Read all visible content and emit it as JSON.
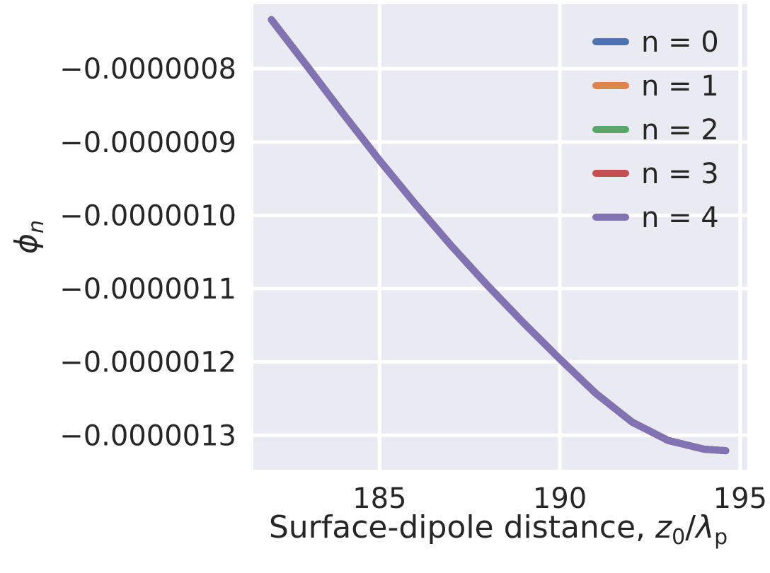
{
  "chart_data": {
    "type": "line",
    "title": "",
    "xlabel": "Surface-dipole distance, ",
    "xlabel_math": {
      "var": "z",
      "var_sub": "0",
      "slash": "/",
      "var2": "λ",
      "var2_sub": "p"
    },
    "ylabel": {
      "var": "ϕ",
      "sub": "n"
    },
    "xlim": [
      181.5,
      195.2
    ],
    "ylim": [
      -1.347e-06,
      -7.12e-07
    ],
    "x_ticks": [
      185,
      190,
      195
    ],
    "x_tick_labels": [
      "185",
      "190",
      "195"
    ],
    "y_ticks": [
      -8e-07,
      -9e-07,
      -1e-06,
      -1.1e-06,
      -1.2e-06,
      -1.3e-06
    ],
    "y_tick_labels": [
      "−0.0000008",
      "−0.0000009",
      "−0.0000010",
      "−0.0000011",
      "−0.0000012",
      "−0.0000013"
    ],
    "grid": true,
    "legend_position": "top-right",
    "series": [
      {
        "name": "n = 0",
        "color": "#4c72b0",
        "x": [
          182.0,
          183.0,
          184.0,
          185.0,
          186.0,
          187.0,
          188.0,
          189.0,
          190.0,
          191.0,
          192.0,
          193.0,
          193.5,
          194.0,
          194.6
        ],
        "y": [
          -7.33e-07,
          -7.97e-07,
          -8.62e-07,
          -9.25e-07,
          -9.85e-07,
          -1.042e-06,
          -1.096e-06,
          -1.147e-06,
          -1.196e-06,
          -1.243e-06,
          -1.282e-06,
          -1.307e-06,
          -1.313e-06,
          -1.319e-06,
          -1.321e-06
        ]
      },
      {
        "name": "n = 1",
        "color": "#dd8452",
        "x": [
          182.0,
          183.0,
          184.0,
          185.0,
          186.0,
          187.0,
          188.0,
          189.0,
          190.0,
          191.0,
          192.0,
          193.0,
          193.5,
          194.0,
          194.6
        ],
        "y": [
          -7.33e-07,
          -7.97e-07,
          -8.62e-07,
          -9.25e-07,
          -9.85e-07,
          -1.042e-06,
          -1.096e-06,
          -1.147e-06,
          -1.196e-06,
          -1.243e-06,
          -1.282e-06,
          -1.307e-06,
          -1.313e-06,
          -1.319e-06,
          -1.321e-06
        ]
      },
      {
        "name": "n = 2",
        "color": "#55a868",
        "x": [
          182.0,
          183.0,
          184.0,
          185.0,
          186.0,
          187.0,
          188.0,
          189.0,
          190.0,
          191.0,
          192.0,
          193.0,
          193.5,
          194.0,
          194.6
        ],
        "y": [
          -7.33e-07,
          -7.97e-07,
          -8.62e-07,
          -9.25e-07,
          -9.85e-07,
          -1.042e-06,
          -1.096e-06,
          -1.147e-06,
          -1.196e-06,
          -1.243e-06,
          -1.282e-06,
          -1.307e-06,
          -1.313e-06,
          -1.319e-06,
          -1.321e-06
        ]
      },
      {
        "name": "n = 3",
        "color": "#c44e52",
        "x": [
          182.0,
          183.0,
          184.0,
          185.0,
          186.0,
          187.0,
          188.0,
          189.0,
          190.0,
          191.0,
          192.0,
          193.0,
          193.5,
          194.0,
          194.6
        ],
        "y": [
          -7.33e-07,
          -7.97e-07,
          -8.62e-07,
          -9.25e-07,
          -9.85e-07,
          -1.042e-06,
          -1.096e-06,
          -1.147e-06,
          -1.196e-06,
          -1.243e-06,
          -1.282e-06,
          -1.307e-06,
          -1.313e-06,
          -1.319e-06,
          -1.321e-06
        ]
      },
      {
        "name": "n = 4",
        "color": "#8172b3",
        "x": [
          182.0,
          183.0,
          184.0,
          185.0,
          186.0,
          187.0,
          188.0,
          189.0,
          190.0,
          191.0,
          192.0,
          193.0,
          193.5,
          194.0,
          194.6
        ],
        "y": [
          -7.33e-07,
          -7.97e-07,
          -8.62e-07,
          -9.25e-07,
          -9.85e-07,
          -1.042e-06,
          -1.096e-06,
          -1.147e-06,
          -1.196e-06,
          -1.243e-06,
          -1.282e-06,
          -1.307e-06,
          -1.313e-06,
          -1.319e-06,
          -1.321e-06
        ]
      }
    ]
  }
}
